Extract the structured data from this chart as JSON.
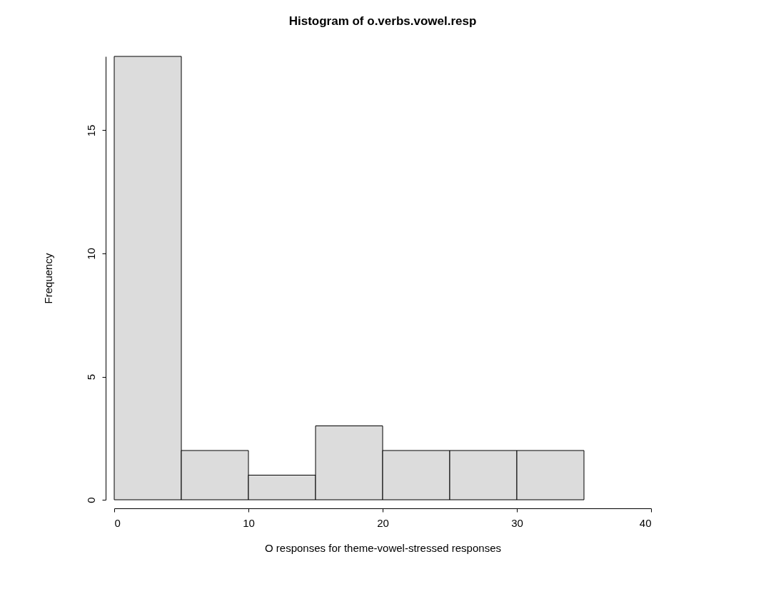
{
  "chart_data": {
    "type": "histogram",
    "title": "Histogram of o.verbs.vowel.resp",
    "xlabel": "O responses for theme-vowel-stressed responses",
    "ylabel": "Frequency",
    "bins": [
      0,
      5,
      10,
      15,
      20,
      25,
      30,
      35
    ],
    "values": [
      18,
      2,
      1,
      3,
      2,
      2,
      2
    ],
    "color": "#dcdcdc",
    "xlim": [
      0,
      40
    ],
    "xticks": [
      0,
      10,
      20,
      30,
      40
    ],
    "ylim": [
      0,
      18
    ],
    "yticks": [
      0,
      5,
      10,
      15
    ],
    "grid": false
  }
}
